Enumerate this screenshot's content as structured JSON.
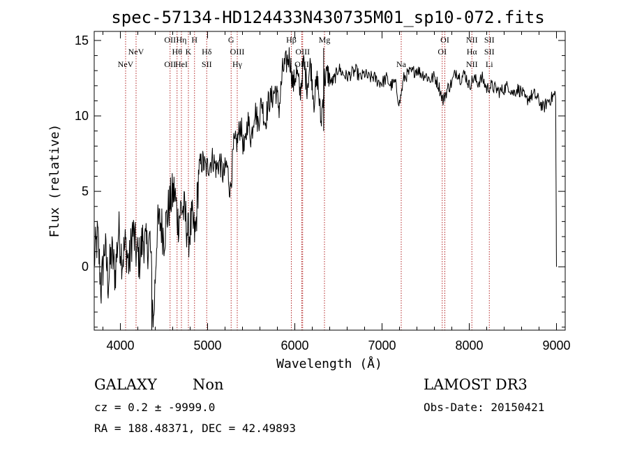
{
  "chart_data": {
    "type": "line",
    "title": "spec-57134-HD124433N430735M01_sp10-072.fits",
    "xlabel": "Wavelength (Å)",
    "ylabel": "Flux (relative)",
    "xlim": [
      3700,
      9100
    ],
    "ylim": [
      -4.2,
      15.6
    ],
    "x_ticks": [
      4000,
      5000,
      6000,
      7000,
      8000,
      9000
    ],
    "y_ticks": [
      0,
      5,
      10,
      15
    ],
    "x_tick_labels": [
      "4000",
      "5000",
      "6000",
      "7000",
      "8000",
      "9000"
    ],
    "y_tick_labels": [
      "0",
      "5",
      "10",
      "15"
    ],
    "series": [
      {
        "name": "spectrum",
        "x": [
          3700,
          3740,
          3780,
          3820,
          3860,
          3900,
          3940,
          3980,
          4020,
          4060,
          4100,
          4140,
          4180,
          4220,
          4260,
          4300,
          4340,
          4380,
          4420,
          4460,
          4500,
          4540,
          4580,
          4620,
          4660,
          4700,
          4740,
          4780,
          4820,
          4860,
          4900,
          4940,
          4980,
          5020,
          5060,
          5100,
          5140,
          5180,
          5220,
          5260,
          5300,
          5340,
          5380,
          5420,
          5460,
          5500,
          5540,
          5580,
          5620,
          5660,
          5700,
          5740,
          5780,
          5820,
          5860,
          5900,
          5940,
          5980,
          6020,
          6060,
          6100,
          6140,
          6180,
          6220,
          6260,
          6300,
          6340,
          6380,
          6420,
          6460,
          6500,
          6550,
          6600,
          6650,
          6700,
          6750,
          6800,
          6850,
          6900,
          6950,
          7000,
          7050,
          7100,
          7150,
          7200,
          7250,
          7300,
          7350,
          7400,
          7450,
          7500,
          7550,
          7600,
          7650,
          7700,
          7750,
          7800,
          7850,
          7900,
          7950,
          8000,
          8050,
          8100,
          8150,
          8200,
          8250,
          8300,
          8350,
          8400,
          8450,
          8500,
          8550,
          8600,
          8650,
          8700,
          8750,
          8800,
          8850,
          8900,
          8950,
          8990,
          9000
        ],
        "y": [
          0.5,
          2.0,
          -1.5,
          1.5,
          -1.0,
          1.0,
          -0.5,
          2.5,
          0.5,
          1.5,
          0.0,
          2.5,
          1.0,
          0.5,
          2.0,
          1.2,
          1.8,
          -3.8,
          2.5,
          3.0,
          2.0,
          3.5,
          4.5,
          5.0,
          3.0,
          4.0,
          3.5,
          2.0,
          3.0,
          2.0,
          6.5,
          7.0,
          6.5,
          6.8,
          7.2,
          6.5,
          7.0,
          6.0,
          6.8,
          5.0,
          8.0,
          8.3,
          9.5,
          7.5,
          9.8,
          8.5,
          10.5,
          9.5,
          11.0,
          9.5,
          11.0,
          11.2,
          11.8,
          10.5,
          13.0,
          13.5,
          14.0,
          12.0,
          13.0,
          11.5,
          13.5,
          12.0,
          13.5,
          11.0,
          12.5,
          9.5,
          12.5,
          12.8,
          12.2,
          12.5,
          13.2,
          12.8,
          12.6,
          12.8,
          13.0,
          12.5,
          12.8,
          12.5,
          12.6,
          12.3,
          12.2,
          12.5,
          12.0,
          12.2,
          10.8,
          12.5,
          12.8,
          12.9,
          13.1,
          12.8,
          12.7,
          12.4,
          12.6,
          12.0,
          11.0,
          11.8,
          12.2,
          13.0,
          12.5,
          12.8,
          12.0,
          12.5,
          12.2,
          12.5,
          11.8,
          12.0,
          11.8,
          11.6,
          11.8,
          12.0,
          11.5,
          11.8,
          11.6,
          11.0,
          11.3,
          11.4,
          11.0,
          10.5,
          11.0,
          11.2,
          11.5,
          0.0
        ],
        "spikes": [
          {
            "x": 4360,
            "y": -4.2
          },
          {
            "x": 6330,
            "y": 14.5
          },
          {
            "x": 6330,
            "y": 9.0
          }
        ]
      }
    ],
    "lines": [
      {
        "x": 4060,
        "labels": [
          "NeV"
        ],
        "row": 3
      },
      {
        "x": 4180,
        "labels": [
          "NeV"
        ],
        "row": 2
      },
      {
        "x": 4570,
        "labels": [
          "OII",
          "OII"
        ],
        "rows": [
          1,
          3
        ]
      },
      {
        "x": 4650,
        "labels": [
          "Hθ"
        ],
        "row": 2
      },
      {
        "x": 4700,
        "labels": [
          "Hη",
          "HeI"
        ],
        "rows": [
          1,
          3
        ]
      },
      {
        "x": 4780,
        "labels": [
          "K"
        ],
        "row": 2
      },
      {
        "x": 4850,
        "labels": [
          "H"
        ],
        "row": 1
      },
      {
        "x": 4990,
        "labels": [
          "Hδ",
          "SII"
        ],
        "rows": [
          2,
          3
        ]
      },
      {
        "x": 5270,
        "labels": [
          "G"
        ],
        "row": 1
      },
      {
        "x": 5340,
        "labels": [
          "OIII",
          "Hγ"
        ],
        "rows": [
          2,
          3
        ]
      },
      {
        "x": 5960,
        "labels": [
          "Hβ"
        ],
        "row": 1
      },
      {
        "x": 6090,
        "labels": [
          "OIII"
        ],
        "row": 2
      },
      {
        "x": 6080,
        "labels": [
          "OIII"
        ],
        "row": 3
      },
      {
        "x": 6340,
        "labels": [
          "Mg"
        ],
        "row": 1
      },
      {
        "x": 7220,
        "labels": [
          "Na"
        ],
        "row": 3
      },
      {
        "x": 7720,
        "labels": [
          "OI"
        ],
        "row": 1
      },
      {
        "x": 7690,
        "labels": [
          "OI"
        ],
        "row": 2
      },
      {
        "x": 8030,
        "labels": [
          "NII",
          "Hα",
          "NII"
        ],
        "rows": [
          1,
          2,
          3
        ]
      },
      {
        "x": 8230,
        "labels": [
          "SII",
          "SII",
          "Li"
        ],
        "rows": [
          1,
          2,
          3
        ]
      }
    ]
  },
  "info": {
    "class": "GALAXY",
    "subclass": "Non",
    "cz": "cz = 0.2 ± -9999.0",
    "radec": "RA = 188.48371, DEC =  42.49893",
    "survey": "LAMOST DR3",
    "obsdate": "Obs-Date: 20150421"
  }
}
